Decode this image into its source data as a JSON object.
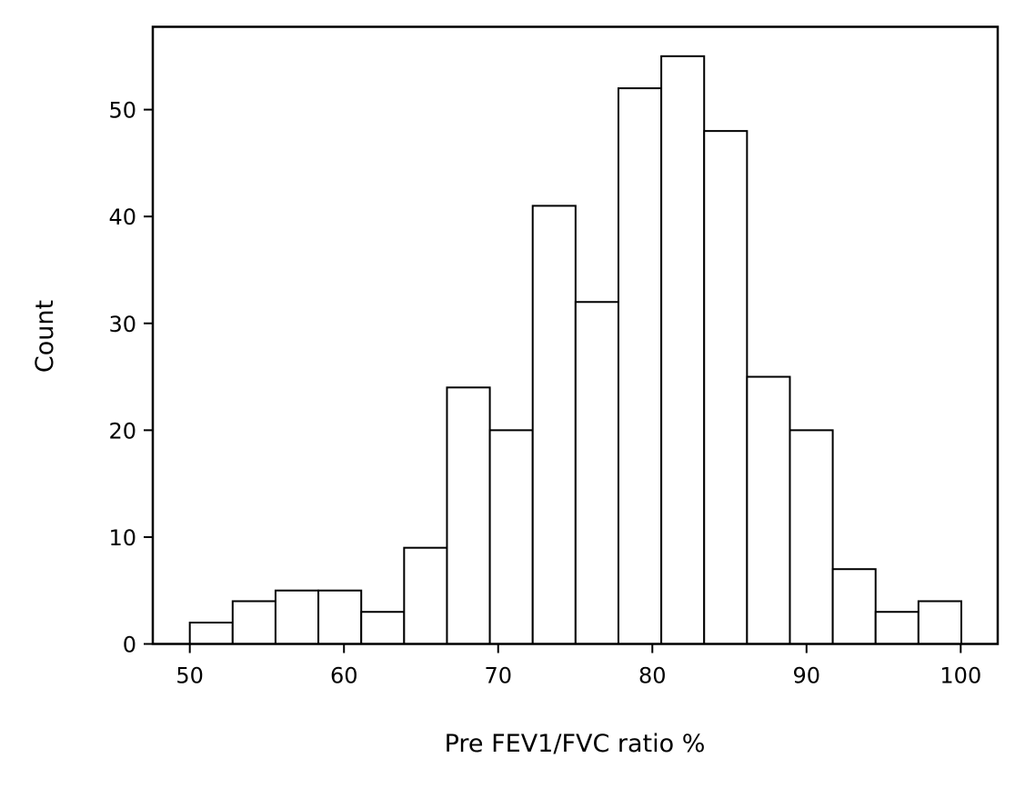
{
  "chart_data": {
    "type": "bar",
    "subtype": "histogram",
    "title": "",
    "xlabel": "Pre FEV1/FVC ratio %",
    "ylabel": "Count",
    "xlim": [
      47.6,
      102.4
    ],
    "ylim": [
      0,
      57.75
    ],
    "bin_start": 50,
    "bin_width": 2.78,
    "values": [
      2,
      4,
      5,
      5,
      3,
      9,
      24,
      20,
      41,
      32,
      52,
      55,
      48,
      25,
      20,
      7,
      3,
      4
    ],
    "xticks": [
      50,
      60,
      70,
      80,
      90,
      100
    ],
    "yticks": [
      0,
      10,
      20,
      30,
      40,
      50
    ],
    "bar_fill": "#ffffff",
    "bar_edge": "#000000",
    "grid": false,
    "legend": "none"
  }
}
